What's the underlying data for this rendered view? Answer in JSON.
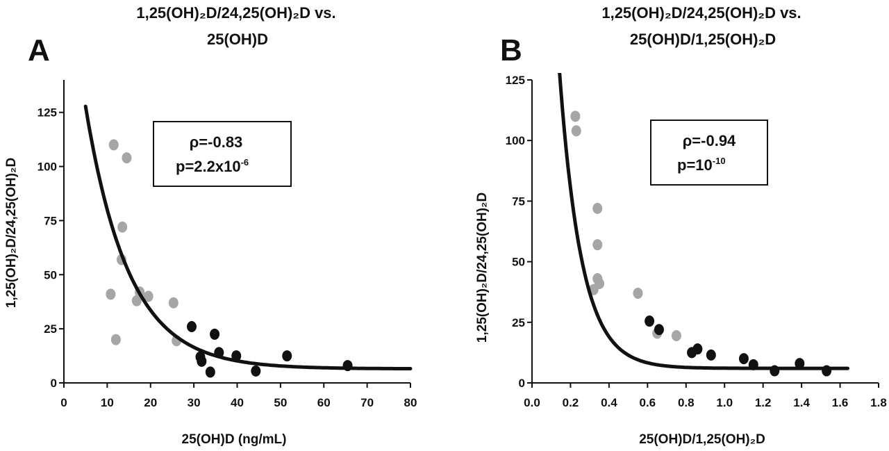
{
  "chart_data": [
    {
      "panel": "A",
      "type": "scatter",
      "title": [
        "1,25(OH)₂D/24,25(OH)₂D vs.",
        "25(OH)D"
      ],
      "xlabel": "25(OH)D (ng/mL)",
      "ylabel": "1,25(OH)₂D/24,25(OH)₂D",
      "xlim": [
        0,
        80
      ],
      "ylim": [
        0,
        140
      ],
      "xticks": [
        0,
        10,
        20,
        30,
        40,
        50,
        60,
        70,
        80
      ],
      "yticks": [
        0,
        25,
        50,
        75,
        100,
        125
      ],
      "colors": {
        "gray": "#a6a6a6",
        "black": "#111111",
        "curve": "#111111"
      },
      "series": [
        {
          "color": "gray",
          "points": [
            [
              11.5,
              110
            ],
            [
              14.5,
              104
            ],
            [
              13.5,
              72
            ],
            [
              13.3,
              57
            ],
            [
              10.8,
              41
            ],
            [
              12.0,
              20
            ],
            [
              16.8,
              38
            ],
            [
              17.5,
              42
            ],
            [
              19.5,
              40
            ],
            [
              25.3,
              37
            ],
            [
              26.0,
              19.5
            ]
          ]
        },
        {
          "color": "black",
          "points": [
            [
              29.5,
              26
            ],
            [
              31.5,
              12
            ],
            [
              31.8,
              10
            ],
            [
              33.8,
              5
            ],
            [
              34.8,
              22.5
            ],
            [
              35.8,
              14
            ],
            [
              39.8,
              12.5
            ],
            [
              44.3,
              5.5
            ],
            [
              51.5,
              12.5
            ],
            [
              65.5,
              8
            ]
          ]
        }
      ],
      "fit": {
        "model": "exponential decay",
        "x_range": [
          5,
          80
        ],
        "plateau": 6.5,
        "span": 200,
        "k": 0.1
      },
      "stats": {
        "rho_label": "ρ=-0.83",
        "p_label": "p=2.2x10",
        "p_exp": "-6"
      }
    },
    {
      "panel": "B",
      "type": "scatter",
      "title": [
        "1,25(OH)₂D/24,25(OH)₂D vs.",
        "25(OH)D/1,25(OH)₂D"
      ],
      "xlabel": "25(OH)D/1,25(OH)₂D",
      "ylabel": "1,25(OH)₂D/24,25(OH)₂D",
      "xlim": [
        0,
        1.8
      ],
      "ylim": [
        0,
        125
      ],
      "xticks": [
        0.0,
        0.2,
        0.4,
        0.6,
        0.8,
        1.0,
        1.2,
        1.4,
        1.6,
        1.8
      ],
      "yticks": [
        0,
        25,
        50,
        75,
        100,
        125
      ],
      "colors": {
        "gray": "#a6a6a6",
        "black": "#111111",
        "curve": "#111111"
      },
      "series": [
        {
          "color": "gray",
          "points": [
            [
              0.225,
              110
            ],
            [
              0.23,
              104
            ],
            [
              0.34,
              72
            ],
            [
              0.34,
              57
            ],
            [
              0.34,
              43
            ],
            [
              0.35,
              41
            ],
            [
              0.32,
              38.5
            ],
            [
              0.55,
              37
            ],
            [
              0.65,
              20.5
            ],
            [
              0.75,
              19.5
            ]
          ]
        },
        {
          "color": "black",
          "points": [
            [
              0.61,
              25.5
            ],
            [
              0.66,
              22
            ],
            [
              0.83,
              12.5
            ],
            [
              0.86,
              14
            ],
            [
              0.93,
              11.5
            ],
            [
              1.1,
              10
            ],
            [
              1.15,
              7.5
            ],
            [
              1.26,
              5
            ],
            [
              1.39,
              8
            ],
            [
              1.53,
              5
            ]
          ]
        }
      ],
      "fit": {
        "model": "exponential decay",
        "x_range": [
          0.13,
          1.64
        ],
        "plateau": 6,
        "span": 423,
        "k": 8.7
      },
      "stats": {
        "rho_label": "ρ=-0.94",
        "p_label": "p=10",
        "p_exp": "-10"
      }
    }
  ]
}
